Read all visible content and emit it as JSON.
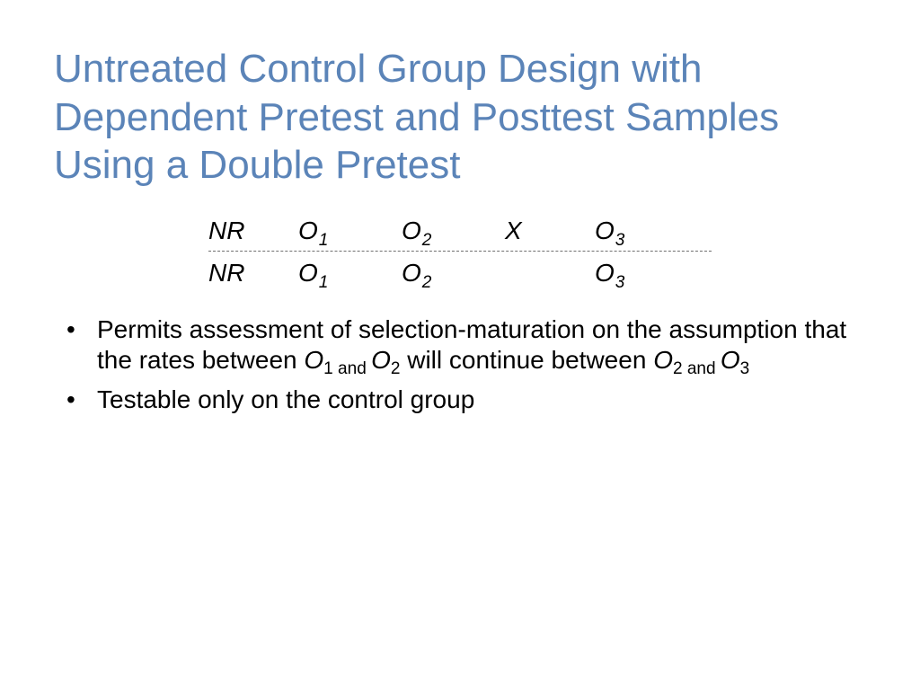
{
  "slide": {
    "title": "Untreated Control Group Design with Dependent Pretest and Posttest Samples Using a Double Pretest",
    "title_color": "#5b84b8",
    "title_fontsize": 44,
    "background_color": "#ffffff",
    "body_fontsize": 28,
    "body_color": "#000000"
  },
  "notation": {
    "type": "table",
    "font_style": "italic",
    "divider_style": "dashed",
    "divider_color": "#707070",
    "columns": [
      "group",
      "obs1",
      "obs2",
      "treatment",
      "obs3"
    ],
    "rows": [
      {
        "group": "NR",
        "obs1": {
          "sym": "O",
          "sub": "1"
        },
        "obs2": {
          "sym": "O",
          "sub": "2"
        },
        "treatment": "X",
        "obs3": {
          "sym": "O",
          "sub": "3"
        }
      },
      {
        "group": "NR",
        "obs1": {
          "sym": "O",
          "sub": "1"
        },
        "obs2": {
          "sym": "O",
          "sub": "2"
        },
        "treatment": "",
        "obs3": {
          "sym": "O",
          "sub": "3"
        }
      }
    ]
  },
  "bullets": [
    {
      "parts": {
        "t0": "Permits assessment of selection-maturation on the assumption that the rates between ",
        "o1_sym": "O",
        "o1_sub": "1 and ",
        "o2_sym": "O",
        "o2_sub": "2",
        "t1": " will continue between ",
        "o2b_sym": "O",
        "o2b_sub": "2 and ",
        "o3_sym": "O",
        "o3_sub": "3"
      }
    },
    {
      "parts": {
        "t0": "Testable only on the control group"
      }
    }
  ]
}
